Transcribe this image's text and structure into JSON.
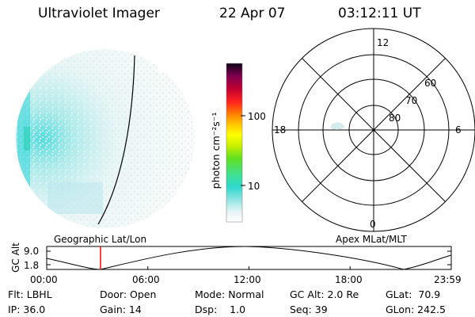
{
  "header": {
    "instrument": "Ultraviolet Imager",
    "date": "22 Apr 07",
    "time": "03:12:11 UT"
  },
  "colorbar": {
    "label": "photon cm⁻²s⁻¹",
    "ticks": [
      "100",
      "10"
    ]
  },
  "polar": {
    "mlt_labels": {
      "top": "12",
      "right": "6",
      "bottom": "0",
      "left": "18"
    },
    "lat_labels": [
      "60",
      "70",
      "80"
    ]
  },
  "track": {
    "left_title": "Geographic Lat/Lon",
    "right_title": "Apex MLat/MLT",
    "axis_label": "GC Alt",
    "y_ticks": [
      "9.0",
      "1.8"
    ],
    "x_ticks": [
      "00:00",
      "06:00",
      "12:00",
      "18:00",
      "23:59"
    ],
    "current_time_fraction": 0.133
  },
  "info": {
    "row1": [
      "Flt: LBHL",
      "Door: Open",
      "Mode: Normal",
      "GC Alt: 2.0 Re",
      "GLat:  70.9"
    ],
    "row2": [
      "IP: 36.0",
      "Gain: 14",
      "Dsp:    1.0",
      "Seq: 39",
      "GLon: 242.5"
    ]
  }
}
